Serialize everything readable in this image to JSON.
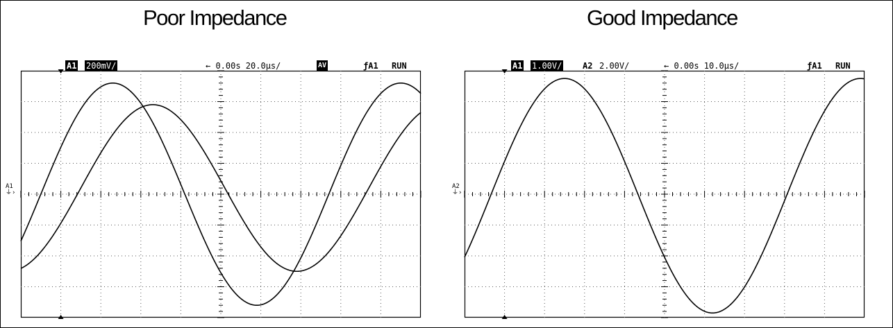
{
  "panels": [
    {
      "title": "Poor Impedance",
      "status": {
        "channel": "A1",
        "scale": "200mV/",
        "trigger_time": "← 0.00s 20.0µs/",
        "mode": "AV",
        "trigger_source": "ƒA1",
        "run_state": "RUN"
      },
      "side_marker": "A1"
    },
    {
      "title": "Good Impedance",
      "status": {
        "channel": "A1",
        "scale": "1.00V/",
        "channel2": "A2",
        "scale2": "2.00V/",
        "trigger_time": "← 0.00s 10.0µs/",
        "trigger_source": "ƒA1",
        "run_state": "RUN"
      },
      "side_marker": "A2"
    }
  ],
  "chart_data": [
    {
      "type": "line",
      "title": "Poor Impedance",
      "grid": true,
      "xlim": [
        0,
        10
      ],
      "ylim": [
        -4,
        4
      ],
      "x_unit": "divisions",
      "y_unit": "divisions",
      "series": [
        {
          "kind": "sine",
          "amplitude_div": 3.6,
          "center_div": 0.0,
          "period_div": 7.2,
          "peak_x_div": 2.3
        },
        {
          "kind": "sine",
          "amplitude_div": 2.7,
          "center_div": 0.2,
          "period_div": 7.2,
          "peak_x_div": 3.3
        }
      ]
    },
    {
      "type": "line",
      "title": "Good Impedance",
      "grid": true,
      "xlim": [
        0,
        10
      ],
      "ylim": [
        -4,
        4
      ],
      "x_unit": "divisions",
      "y_unit": "divisions",
      "series": [
        {
          "kind": "sine",
          "amplitude_div": 3.8,
          "center_div": -0.05,
          "period_div": 7.4,
          "peak_x_div": 2.5
        }
      ]
    }
  ]
}
